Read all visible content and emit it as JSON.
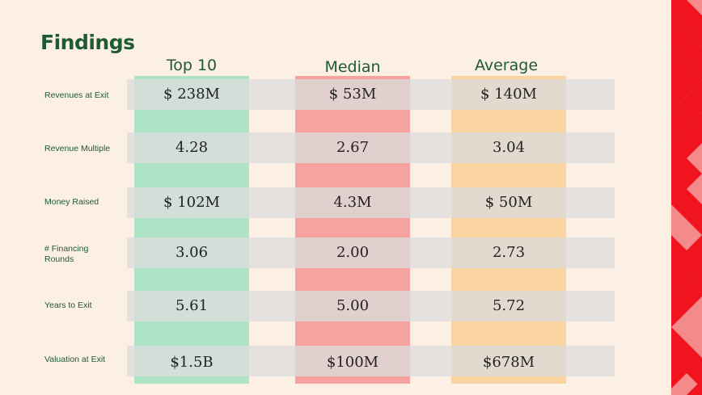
{
  "title": "Findings",
  "columns": [
    {
      "label": "Top 10",
      "color": "#aee3c7"
    },
    {
      "label": "Median",
      "color": "#f5a3a0"
    },
    {
      "label": "Average",
      "color": "#f9d3a0"
    }
  ],
  "rows": [
    {
      "label": "Revenues at Exit",
      "values": [
        "$ 238M",
        "$ 53M",
        "$ 140M"
      ]
    },
    {
      "label": "Revenue Multiple",
      "values": [
        "4.28",
        "2.67",
        "3.04"
      ]
    },
    {
      "label": "Money Raised",
      "values": [
        "$ 102M",
        "4.3M",
        "$ 50M"
      ]
    },
    {
      "label": "# Financing Rounds",
      "values": [
        "3.06",
        "2.00",
        "2.73"
      ]
    },
    {
      "label": "Years to Exit",
      "values": [
        "5.61",
        "5.00",
        "5.72"
      ]
    },
    {
      "label": "Valuation at Exit",
      "values": [
        "$1.5B",
        "$100M",
        "$678M"
      ]
    }
  ],
  "colors": {
    "background": "#fcefe3",
    "accent_text": "#1e5b33",
    "decoration_red": "#f0141e",
    "decoration_pink": "#f58a8a"
  }
}
